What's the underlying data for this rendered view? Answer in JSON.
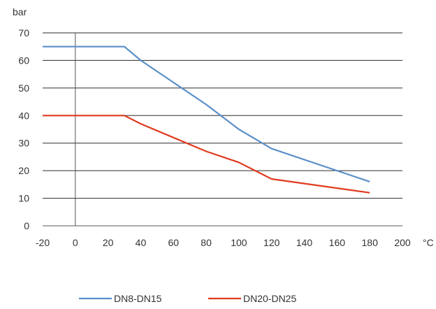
{
  "chart_data": {
    "type": "line",
    "ylabel": "bar",
    "xlabel": "°C",
    "xlim": [
      -20,
      200
    ],
    "ylim": [
      0,
      70
    ],
    "x_ticks": [
      -20,
      0,
      20,
      40,
      60,
      80,
      100,
      120,
      140,
      160,
      180,
      200
    ],
    "y_ticks": [
      0,
      10,
      20,
      30,
      40,
      50,
      60,
      70
    ],
    "grid": "horizontal",
    "legend_position": "bottom",
    "series": [
      {
        "name": "DN8-DN15",
        "color": "#5b8fc9",
        "x": [
          -20,
          30,
          40,
          60,
          80,
          100,
          120,
          180
        ],
        "y": [
          65,
          65,
          60,
          52,
          44,
          35,
          28,
          16
        ]
      },
      {
        "name": "DN20-DN25",
        "color": "#e03a1e",
        "x": [
          -20,
          30,
          40,
          60,
          80,
          100,
          120,
          180
        ],
        "y": [
          40,
          40,
          37,
          32,
          27,
          23,
          17,
          12
        ]
      }
    ]
  }
}
